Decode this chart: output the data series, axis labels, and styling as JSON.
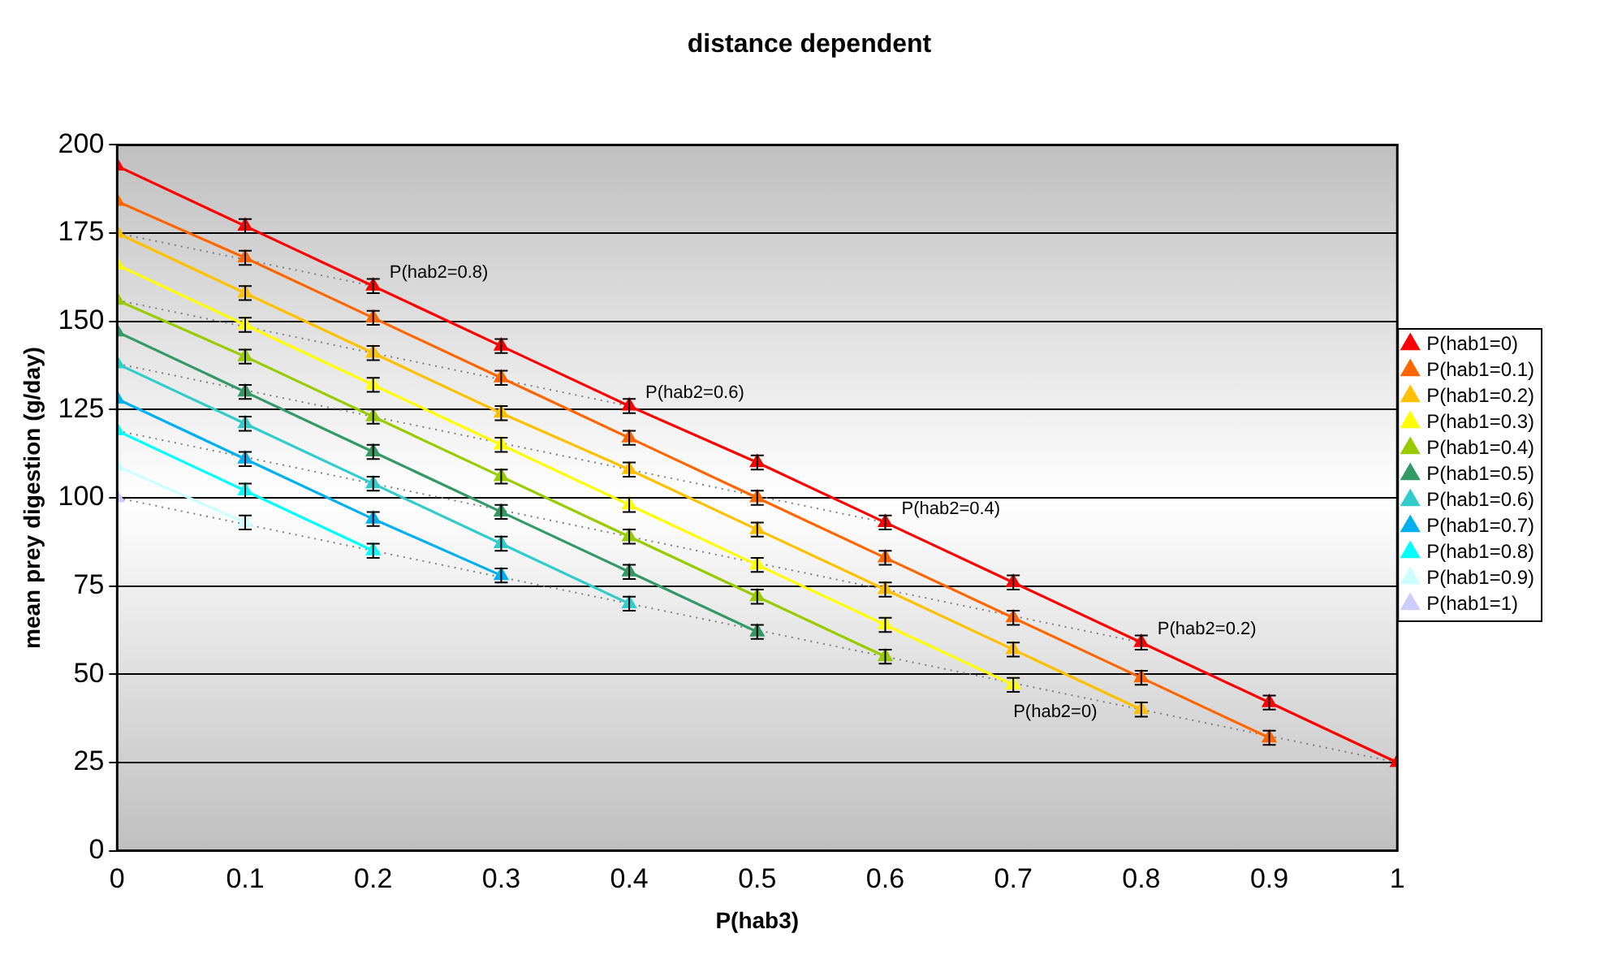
{
  "chart_data": {
    "type": "line",
    "title": "distance dependent",
    "xlabel": "P(hab3)",
    "ylabel": "mean prey digestion (g/day)",
    "xlim": [
      0,
      1
    ],
    "xticks": [
      0,
      0.1,
      0.2,
      0.3,
      0.4,
      0.5,
      0.6,
      0.7,
      0.8,
      0.9,
      1
    ],
    "ylim": [
      0,
      200
    ],
    "yticks": [
      0,
      25,
      50,
      75,
      100,
      125,
      150,
      175,
      200
    ],
    "grid": "y",
    "legend": "right",
    "series": [
      {
        "name": "P(hab1=0)",
        "marker": "triangle",
        "color": "#ff0000",
        "x": [
          0,
          0.1,
          0.2,
          0.3,
          0.4,
          0.5,
          0.6,
          0.7,
          0.8,
          0.9,
          1
        ],
        "values": [
          194,
          177,
          160,
          143,
          126,
          110,
          93,
          76,
          59,
          42,
          25
        ],
        "errors": [
          null,
          2,
          2,
          2,
          2,
          2,
          2,
          2,
          2,
          2,
          null
        ]
      },
      {
        "name": "P(hab1=0.1)",
        "marker": "triangle",
        "color": "#ff6600",
        "x": [
          0,
          0.1,
          0.2,
          0.3,
          0.4,
          0.5,
          0.6,
          0.7,
          0.8,
          0.9
        ],
        "values": [
          184,
          168,
          151,
          134,
          117,
          100,
          83,
          66,
          49,
          32
        ],
        "errors": [
          null,
          2,
          2,
          2,
          2,
          2,
          2,
          2,
          2,
          2
        ]
      },
      {
        "name": "P(hab1=0.2)",
        "marker": "triangle",
        "color": "#ffc000",
        "x": [
          0,
          0.1,
          0.2,
          0.3,
          0.4,
          0.5,
          0.6,
          0.7,
          0.8
        ],
        "values": [
          175,
          158,
          141,
          124,
          108,
          91,
          74,
          57,
          40
        ],
        "errors": [
          null,
          2,
          2,
          2,
          2,
          2,
          2,
          2,
          2
        ]
      },
      {
        "name": "P(hab1=0.3)",
        "marker": "triangle",
        "color": "#ffff00",
        "x": [
          0,
          0.1,
          0.2,
          0.3,
          0.4,
          0.5,
          0.6,
          0.7
        ],
        "values": [
          166,
          149,
          132,
          115,
          98,
          81,
          64,
          47
        ],
        "errors": [
          null,
          2,
          2,
          2,
          2,
          2,
          2,
          2
        ]
      },
      {
        "name": "P(hab1=0.4)",
        "marker": "triangle",
        "color": "#99cc00",
        "x": [
          0,
          0.1,
          0.2,
          0.3,
          0.4,
          0.5,
          0.6
        ],
        "values": [
          156,
          140,
          123,
          106,
          89,
          72,
          55
        ],
        "errors": [
          null,
          2,
          2,
          2,
          2,
          2,
          2
        ]
      },
      {
        "name": "P(hab1=0.5)",
        "marker": "triangle",
        "color": "#339966",
        "x": [
          0,
          0.1,
          0.2,
          0.3,
          0.4,
          0.5
        ],
        "values": [
          147,
          130,
          113,
          96,
          79,
          62
        ],
        "errors": [
          null,
          2,
          2,
          2,
          2,
          2
        ]
      },
      {
        "name": "P(hab1=0.6)",
        "marker": "triangle",
        "color": "#33cccc",
        "x": [
          0,
          0.1,
          0.2,
          0.3,
          0.4
        ],
        "values": [
          138,
          121,
          104,
          87,
          70
        ],
        "errors": [
          null,
          2,
          2,
          2,
          2
        ]
      },
      {
        "name": "P(hab1=0.7)",
        "marker": "triangle",
        "color": "#00b0f0",
        "x": [
          0,
          0.1,
          0.2,
          0.3
        ],
        "values": [
          128,
          111,
          94,
          78
        ],
        "errors": [
          null,
          2,
          2,
          2
        ]
      },
      {
        "name": "P(hab1=0.8)",
        "marker": "triangle",
        "color": "#00ffff",
        "x": [
          0,
          0.1,
          0.2
        ],
        "values": [
          119,
          102,
          85
        ],
        "errors": [
          null,
          2,
          2
        ]
      },
      {
        "name": "P(hab1=0.9)",
        "marker": "triangle",
        "color": "#ccffff",
        "x": [
          0,
          0.1
        ],
        "values": [
          109,
          93
        ],
        "errors": [
          null,
          2
        ]
      },
      {
        "name": "P(hab1=1)",
        "marker": "triangle",
        "color": "#ccccff",
        "x": [
          0
        ],
        "values": [
          100
        ]
      },
      {
        "name": "P(hab2=0.8)",
        "color": "#808080",
        "line_style": "dotted",
        "x": [
          0,
          0.2
        ],
        "values": [
          175,
          160
        ]
      },
      {
        "name": "P(hab2=0.6)",
        "color": "#808080",
        "line_style": "dotted",
        "x": [
          0,
          0.4
        ],
        "values": [
          156,
          126
        ]
      },
      {
        "name": "P(hab2=0.4)",
        "color": "#808080",
        "line_style": "dotted",
        "x": [
          0,
          0.6
        ],
        "values": [
          138,
          93
        ]
      },
      {
        "name": "P(hab2=0.2)",
        "color": "#808080",
        "line_style": "dotted",
        "x": [
          0,
          0.8
        ],
        "values": [
          119,
          59
        ]
      },
      {
        "name": "P(hab2=0)",
        "color": "#808080",
        "line_style": "dotted",
        "x": [
          0,
          1
        ],
        "values": [
          100,
          25
        ]
      }
    ]
  }
}
